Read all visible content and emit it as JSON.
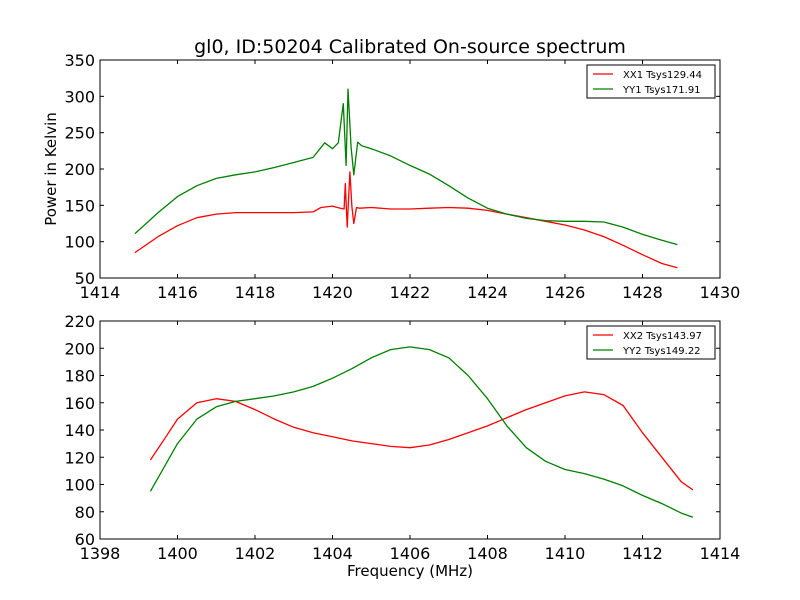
{
  "title": "gl0, ID:50204 Calibrated On-source spectrum",
  "chart_data": [
    {
      "type": "line",
      "title": "gl0, ID:50204 Calibrated On-source spectrum",
      "xlabel": "",
      "ylabel": "Power in Kelvin",
      "xlim": [
        1414,
        1430
      ],
      "ylim": [
        50,
        350
      ],
      "xticks": [
        "1414",
        "1416",
        "1418",
        "1420",
        "1422",
        "1424",
        "1426",
        "1428",
        "1430"
      ],
      "yticks": [
        "50",
        "100",
        "150",
        "200",
        "250",
        "300",
        "350"
      ],
      "legend_position": "top-right",
      "grid": false,
      "series": [
        {
          "name": "XX1 Tsys129.44",
          "color": "#ff0000",
          "x": [
            1414.9,
            1415.5,
            1416,
            1416.5,
            1417,
            1417.5,
            1418,
            1418.5,
            1419,
            1419.5,
            1419.7,
            1420,
            1420.2,
            1420.3,
            1420.33,
            1420.38,
            1420.45,
            1420.5,
            1420.55,
            1420.62,
            1420.7,
            1421,
            1421.5,
            1422,
            1422.5,
            1423,
            1423.5,
            1424,
            1424.5,
            1425,
            1425.5,
            1426,
            1426.5,
            1427,
            1427.5,
            1428,
            1428.5,
            1428.9
          ],
          "y": [
            85,
            107,
            122,
            133,
            138,
            140,
            140,
            140,
            140,
            141,
            147,
            149,
            146,
            145,
            180,
            120,
            196,
            148,
            125,
            147,
            146,
            147,
            145,
            145,
            146,
            147,
            146,
            143,
            138,
            133,
            128,
            123,
            116,
            107,
            95,
            82,
            70,
            64
          ]
        },
        {
          "name": "YY1 Tsys171.91",
          "color": "#008000",
          "x": [
            1414.9,
            1415.5,
            1416,
            1416.5,
            1417,
            1417.5,
            1418,
            1418.5,
            1419,
            1419.5,
            1419.8,
            1420,
            1420.15,
            1420.28,
            1420.35,
            1420.4,
            1420.48,
            1420.55,
            1420.65,
            1420.75,
            1421,
            1421.5,
            1422,
            1422.5,
            1423,
            1423.5,
            1424,
            1424.5,
            1425,
            1425.5,
            1426,
            1426.5,
            1427,
            1427.5,
            1428,
            1428.5,
            1428.9
          ],
          "y": [
            111,
            140,
            162,
            177,
            187,
            192,
            196,
            202,
            209,
            216,
            236,
            228,
            236,
            290,
            205,
            310,
            230,
            192,
            237,
            232,
            228,
            218,
            205,
            193,
            177,
            160,
            146,
            138,
            132,
            129,
            128,
            128,
            127,
            120,
            110,
            102,
            96
          ]
        }
      ]
    },
    {
      "type": "line",
      "title": "",
      "xlabel": "Frequency (MHz)",
      "ylabel": "",
      "xlim": [
        1398,
        1414
      ],
      "ylim": [
        60,
        220
      ],
      "xticks": [
        "1398",
        "1400",
        "1402",
        "1404",
        "1406",
        "1408",
        "1410",
        "1412",
        "1414"
      ],
      "yticks": [
        "60",
        "80",
        "100",
        "120",
        "140",
        "160",
        "180",
        "200",
        "220"
      ],
      "legend_position": "top-right",
      "grid": false,
      "series": [
        {
          "name": "XX2 Tsys143.97",
          "color": "#ff0000",
          "x": [
            1399.3,
            1399.7,
            1400,
            1400.5,
            1401,
            1401.5,
            1402,
            1402.5,
            1403,
            1403.5,
            1404,
            1404.5,
            1405,
            1405.5,
            1406,
            1406.5,
            1407,
            1407.5,
            1408,
            1408.5,
            1409,
            1409.5,
            1410,
            1410.5,
            1411,
            1411.5,
            1412,
            1412.5,
            1413,
            1413.3
          ],
          "y": [
            118,
            135,
            148,
            160,
            163,
            161,
            155,
            148,
            142,
            138,
            135,
            132,
            130,
            128,
            127,
            129,
            133,
            138,
            143,
            149,
            155,
            160,
            165,
            168,
            166,
            158,
            138,
            120,
            102,
            96
          ]
        },
        {
          "name": "YY2 Tsys149.22",
          "color": "#008000",
          "x": [
            1399.3,
            1399.7,
            1400,
            1400.5,
            1401,
            1401.5,
            1402,
            1402.5,
            1403,
            1403.5,
            1404,
            1404.5,
            1405,
            1405.5,
            1406,
            1406.5,
            1407,
            1407.5,
            1408,
            1408.5,
            1409,
            1409.5,
            1410,
            1410.5,
            1411,
            1411.5,
            1412,
            1412.5,
            1413,
            1413.3
          ],
          "y": [
            95,
            115,
            130,
            148,
            157,
            161,
            163,
            165,
            168,
            172,
            178,
            185,
            193,
            199,
            201,
            199,
            193,
            180,
            163,
            143,
            127,
            117,
            111,
            108,
            104,
            99,
            92,
            86,
            79,
            76
          ]
        }
      ]
    }
  ]
}
